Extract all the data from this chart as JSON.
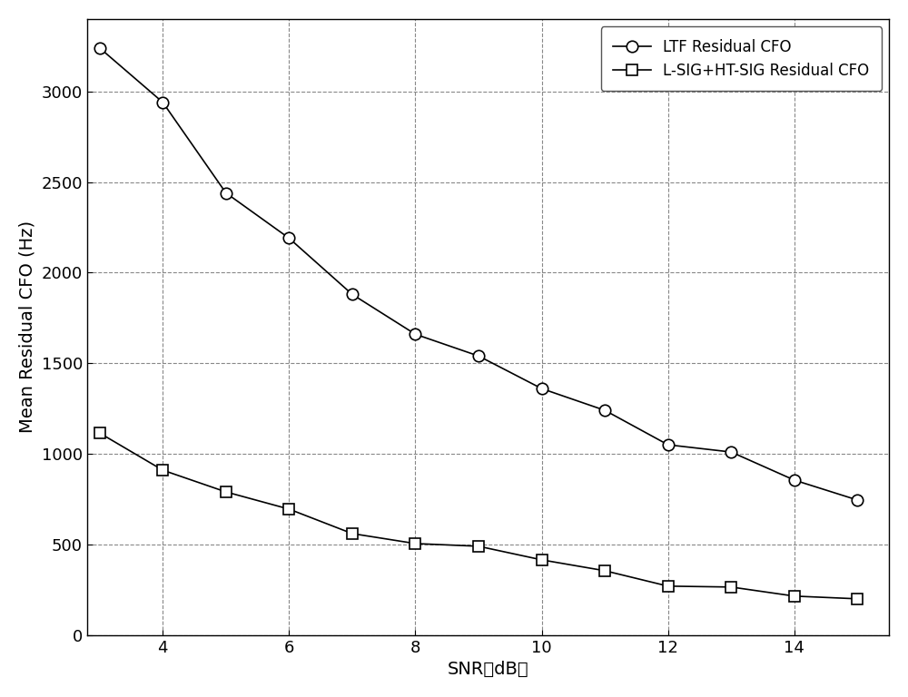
{
  "snr_ltf": [
    3,
    4,
    5,
    6,
    7,
    8,
    9,
    10,
    11,
    12,
    13,
    14,
    15
  ],
  "ltf_cfo": [
    3240,
    2940,
    2440,
    2190,
    1880,
    1660,
    1540,
    1360,
    1240,
    1050,
    1010,
    855,
    745
  ],
  "snr_lsig": [
    3,
    4,
    5,
    6,
    7,
    8,
    9,
    10,
    11,
    12,
    13,
    14,
    15
  ],
  "lsig_cfo": [
    1115,
    910,
    790,
    695,
    560,
    505,
    490,
    415,
    355,
    270,
    265,
    215,
    200
  ],
  "line_color": "#000000",
  "marker_ltf": "o",
  "marker_lsig": "s",
  "legend_ltf": "LTF Residual CFO",
  "legend_lsig": "L-SIG+HT-SIG Residual CFO",
  "xlabel": "SNR（dB）",
  "ylabel": "Mean Residual CFO (Hz)",
  "xlim": [
    2.8,
    15.5
  ],
  "ylim": [
    0,
    3400
  ],
  "xticks": [
    4,
    6,
    8,
    10,
    12,
    14
  ],
  "yticks": [
    0,
    500,
    1000,
    1500,
    2000,
    2500,
    3000
  ],
  "grid_color": "#888888",
  "background_color": "#ffffff",
  "marker_size": 9,
  "linewidth": 1.2,
  "label_fontsize": 14,
  "tick_fontsize": 13,
  "legend_fontsize": 12
}
